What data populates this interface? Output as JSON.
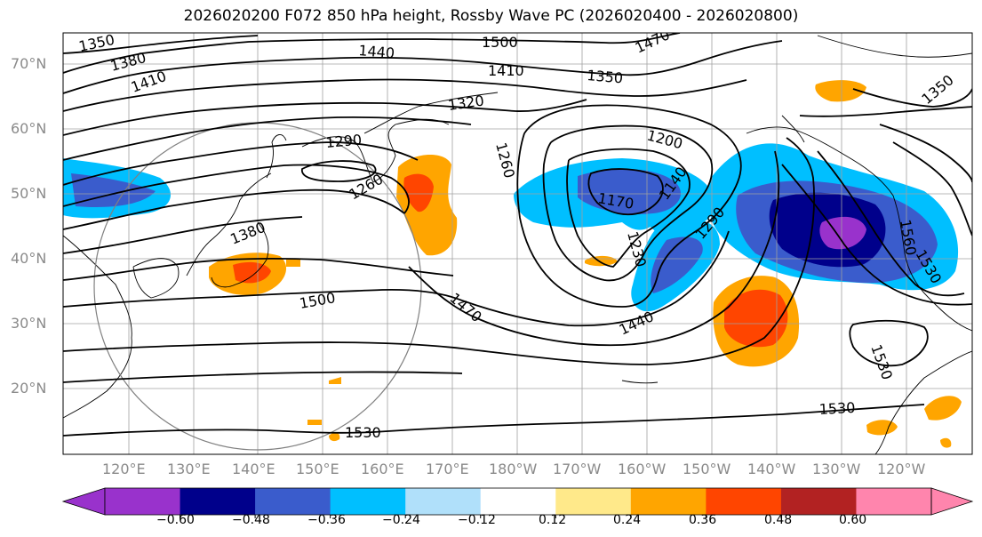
{
  "title": "2026020200 F072 850 hPa height, Rossby Wave PC (2026020400 - 2026020800)",
  "lat_labels": [
    "70°N",
    "60°N",
    "50°N",
    "40°N",
    "30°N",
    "20°N"
  ],
  "lon_labels": [
    "120°E",
    "130°E",
    "140°E",
    "150°E",
    "160°E",
    "170°E",
    "180°W",
    "170°W",
    "160°W",
    "150°W",
    "140°W",
    "130°W",
    "120°W"
  ],
  "colorbar": {
    "colors": [
      "#9932cc",
      "#00008b",
      "#3a5ccc",
      "#00bfff",
      "#b0e0fa",
      "#ffffff",
      "#ffe98a",
      "#ffa500",
      "#ff4500",
      "#b22222",
      "#ff85ad"
    ],
    "tick_labels": [
      "−0.60",
      "−0.48",
      "−0.36",
      "−0.24",
      "−0.12",
      "0.12",
      "0.24",
      "0.36",
      "0.48",
      "0.60"
    ]
  },
  "contour_labels": [
    "1350",
    "1380",
    "1410",
    "1440",
    "1500",
    "1470",
    "1410",
    "1350",
    "1320",
    "1290",
    "1260",
    "1260",
    "1200",
    "1170",
    "1140",
    "1230",
    "1290",
    "1380",
    "1500",
    "1470",
    "1440",
    "1530",
    "1530",
    "1530",
    "1350",
    "1560",
    "1530"
  ]
}
